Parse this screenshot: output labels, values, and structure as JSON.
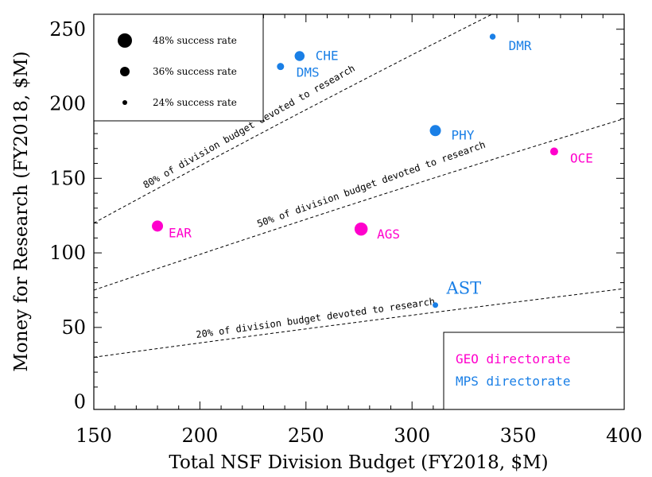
{
  "chart_data": {
    "type": "scatter",
    "xlabel": "Total NSF Division Budget (FY2018, $M)",
    "ylabel": "Money for Research (FY2018, $M)",
    "xlim": [
      150,
      400
    ],
    "ylim": [
      -5,
      260
    ],
    "x_ticks": [
      150,
      200,
      250,
      300,
      350,
      400
    ],
    "y_ticks": [
      0,
      50,
      100,
      150,
      200,
      250
    ],
    "colors": {
      "GEO": "#ff00cc",
      "MPS": "#1a7fe6"
    },
    "points": [
      {
        "label": "EAR",
        "x": 180,
        "y": 118,
        "success_rate": 40,
        "group": "GEO"
      },
      {
        "label": "AGS",
        "x": 276,
        "y": 116,
        "success_rate": 45,
        "group": "GEO"
      },
      {
        "label": "OCE",
        "x": 367,
        "y": 168,
        "success_rate": 32,
        "group": "GEO"
      },
      {
        "label": "PHY",
        "x": 311,
        "y": 182,
        "success_rate": 40,
        "group": "MPS"
      },
      {
        "label": "CHE",
        "x": 247,
        "y": 232,
        "success_rate": 37,
        "group": "MPS"
      },
      {
        "label": "DMS",
        "x": 238,
        "y": 225,
        "success_rate": 30,
        "group": "MPS"
      },
      {
        "label": "DMR",
        "x": 338,
        "y": 245,
        "success_rate": 27,
        "group": "MPS"
      },
      {
        "label": "AST",
        "x": 311,
        "y": 65,
        "success_rate": 26,
        "group": "MPS"
      }
    ],
    "reference_lines": [
      {
        "fraction": 0.8,
        "label": "80% of division budget devoted to research"
      },
      {
        "fraction": 0.5,
        "label": "50% of division budget devoted to research"
      },
      {
        "fraction": 0.2,
        "label": "20% of division budget devoted to research"
      }
    ],
    "size_legend": [
      {
        "label": "48% success rate",
        "rate": 48
      },
      {
        "label": "36% success rate",
        "rate": 36
      },
      {
        "label": "24% success rate",
        "rate": 24
      }
    ],
    "color_legend": [
      {
        "label": "GEO directorate",
        "group": "GEO"
      },
      {
        "label": "MPS directorate",
        "group": "MPS"
      }
    ]
  }
}
